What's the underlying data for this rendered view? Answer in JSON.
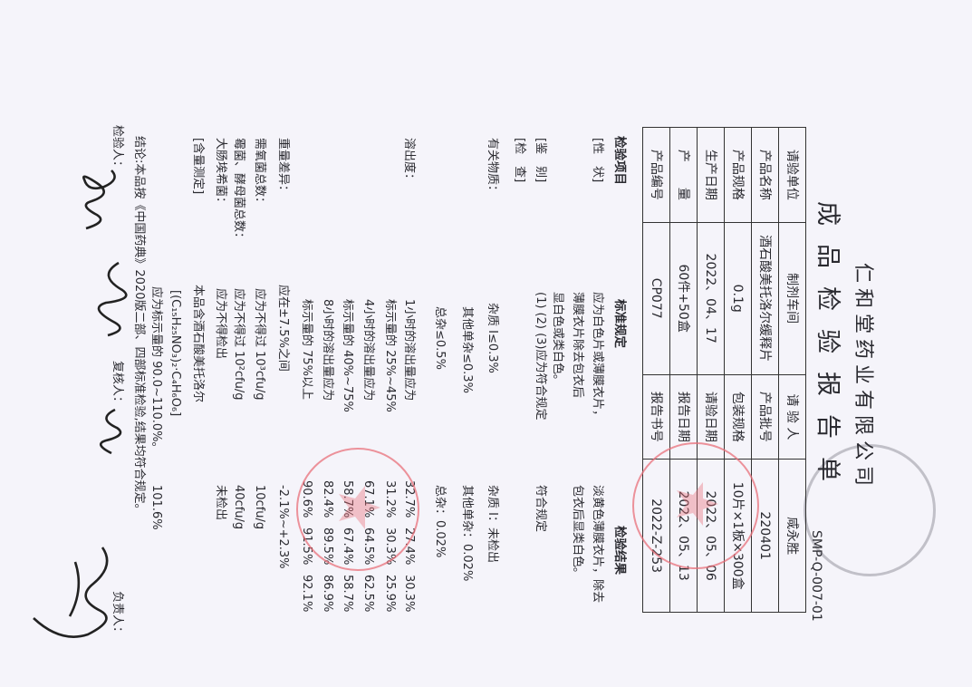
{
  "header": {
    "company": "仁和堂药业有限公司",
    "title": "成品检验报告单",
    "form_code": "SMP-Q-007-01"
  },
  "info_table": [
    [
      "请验单位",
      "制剂车间",
      "请 验 人",
      "咸永胜"
    ],
    [
      "产品名称",
      "酒石酸美托洛尔缓释片",
      "产品批号",
      "220401"
    ],
    [
      "产品规格",
      "0.1g",
      "包装规格",
      "10片×1板×300盒"
    ],
    [
      "生产日期",
      "2022、04、17",
      "请验日期",
      "2022、05、06"
    ],
    [
      "产　　量",
      "60件+50盒",
      "报告日期",
      "2022、05、13"
    ],
    [
      "产品编号",
      "CP077",
      "报告书号",
      "2022-Z-253"
    ]
  ],
  "columns": {
    "item": "检验项目",
    "standard": "标准规定",
    "result": "检验结果"
  },
  "rows": [
    {
      "item": "[性　状]",
      "standard": "应为白色片或薄膜衣片，",
      "result": "淡黄色薄膜衣片，除去"
    },
    {
      "item": "",
      "standard": "薄膜衣片除去包衣后",
      "result": "包衣后显类白色。"
    },
    {
      "item": "",
      "standard": "显白色或类白色。",
      "result": ""
    },
    {
      "item": "[鉴　别]",
      "standard": "(1) (2) (3)应为符合规定",
      "result": "符合规定"
    },
    {
      "item": "[检　查]",
      "standard": "",
      "result": ""
    },
    {
      "item": "有关物质：",
      "standard": "杂质 Ⅰ≤0.3%",
      "result": "杂质 Ⅰ：未检出"
    },
    {
      "item": "",
      "standard": "其他单杂≤0.3%",
      "result": "其他单杂：0.02%"
    },
    {
      "item": "",
      "standard": "总杂≤0.5%",
      "result": "总杂：0.02%"
    },
    {
      "item": "溶出度：",
      "standard": "1小时的溶出量应为",
      "results": [
        "32.7%",
        "27.4%",
        "30.3%"
      ]
    },
    {
      "item": "",
      "standard": "标示量的 25%~45%",
      "results": [
        "31.2%",
        "30.3%",
        "25.9%"
      ]
    },
    {
      "item": "",
      "standard": "4小时的溶出量应为",
      "results": [
        "67.1%",
        "64.5%",
        "62.5%"
      ]
    },
    {
      "item": "",
      "standard": "标示量的 40%~75%",
      "results": [
        "58.7%",
        "67.4%",
        "58.7%"
      ]
    },
    {
      "item": "",
      "standard": "8小时的溶出量应为",
      "results": [
        "82.4%",
        "89.5%",
        "86.9%"
      ]
    },
    {
      "item": "",
      "standard": "标示量的 75%以上",
      "results": [
        "90.6%",
        "91.5%",
        "92.1%"
      ]
    },
    {
      "item": "重量差异：",
      "standard": "应在±7.5%之间",
      "result": "-2.1%~+2.3%"
    },
    {
      "item": "需氧菌总数：",
      "standard": "应为不得过 10³cfu/g",
      "result": "10cfu/g"
    },
    {
      "item": "霉菌、酵母菌总数：",
      "standard": "应为不得过 10²cfu/g",
      "result": "40cfu/g"
    },
    {
      "item": "大肠埃希菌：",
      "standard": "应为不得检出",
      "result": "未检出"
    },
    {
      "item": "[含量测定]",
      "standard": "本品含酒石酸美托洛尔",
      "result": ""
    },
    {
      "item": "",
      "standard": "[(C₁₅H₂₅NO₃)₂·C₄H₆O₆]",
      "result": ""
    },
    {
      "item": "",
      "standard": "应为标示量的 90.0~110.0%。",
      "result": "101.6%"
    }
  ],
  "conclusion": "结论:本品按《中国药典》2020版二部、四部标准检验,结果均符合规定。",
  "signatures": {
    "inspector_label": "检验人：",
    "reviewer_label": "复核人：",
    "supervisor_label": "负责人："
  },
  "stamp_colors": {
    "red": "#e8707a",
    "gray": "#9a9aa0"
  }
}
